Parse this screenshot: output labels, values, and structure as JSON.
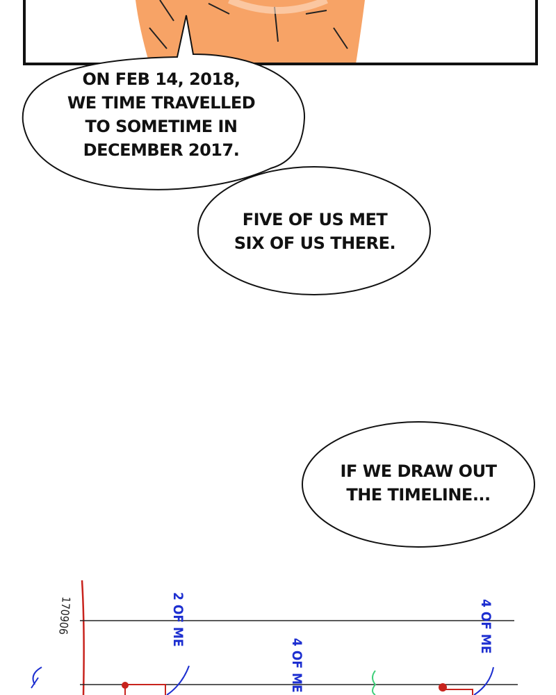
{
  "bubbles": [
    {
      "lines": [
        "ON FEB 14, 2018,",
        "WE TIME TRAVELLED",
        "TO SOMETIME IN",
        "DECEMBER 2017."
      ]
    },
    {
      "lines": [
        "FIVE OF US MET",
        "SIX OF US THERE."
      ]
    },
    {
      "lines": [
        "IF WE DRAW OUT",
        "THE TIMELINE..."
      ]
    }
  ],
  "sketch": {
    "labels": [
      "2 OF ME",
      "4 OF ME",
      "4 OF ME",
      "170906"
    ]
  }
}
